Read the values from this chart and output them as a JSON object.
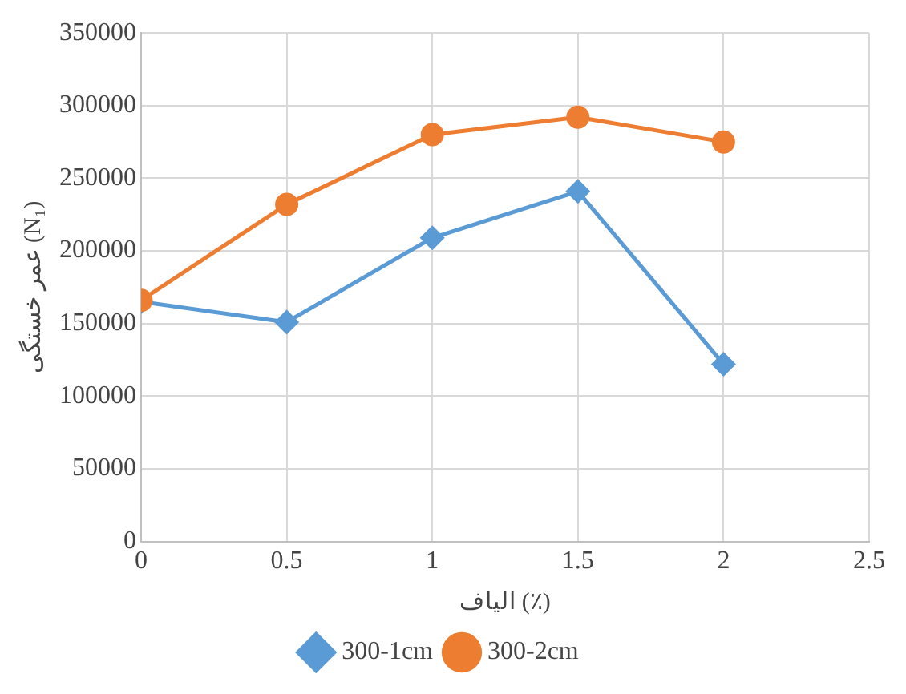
{
  "chart_data": {
    "type": "line",
    "xlabel": "الیاف (٪)",
    "ylabel": "عمر خستگی (N₁)",
    "x": [
      0,
      0.5,
      1,
      1.5,
      2
    ],
    "series": [
      {
        "name": "300-1cm",
        "color": "#5b9bd5",
        "marker": "diamond",
        "values": [
          165000,
          151000,
          209000,
          241000,
          122000
        ]
      },
      {
        "name": "300-2cm",
        "color": "#ed7d31",
        "marker": "circle",
        "values": [
          166000,
          232000,
          280000,
          292000,
          275000
        ]
      }
    ],
    "xlim": [
      0,
      2.5
    ],
    "xticks": [
      0,
      0.5,
      1,
      1.5,
      2,
      2.5
    ],
    "ylim": [
      0,
      350000
    ],
    "yticks": [
      0,
      50000,
      100000,
      150000,
      200000,
      250000,
      300000,
      350000
    ],
    "grid": true,
    "legend": "bottom"
  }
}
